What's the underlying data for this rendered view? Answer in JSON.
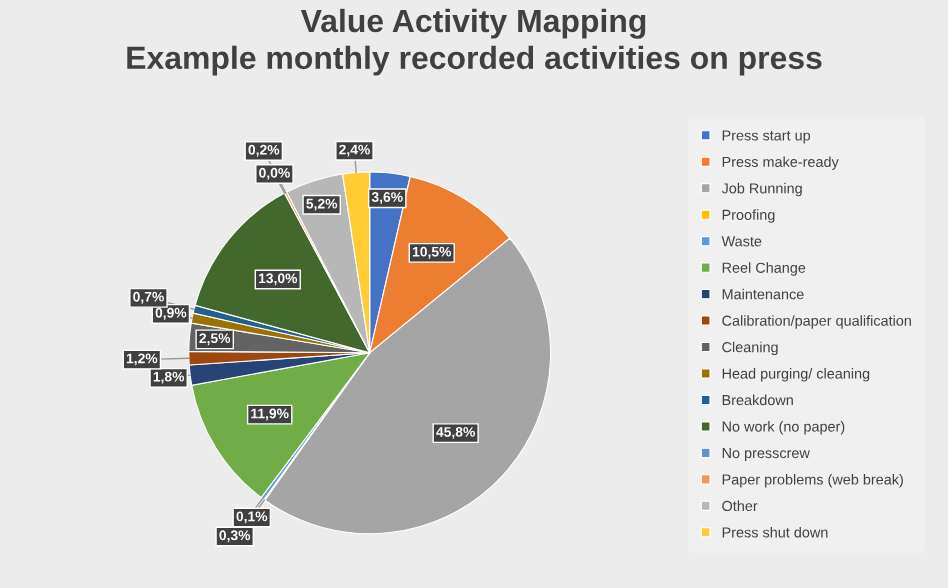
{
  "chart_data": {
    "type": "pie",
    "title": "Value Activity Mapping\nExample monthly recorded activities on press",
    "categories": [
      "Press start up",
      "Press make-ready",
      "Job Running",
      "Proofing",
      "Waste",
      "Reel Change",
      "Maintenance",
      "Calibration/paper qualification",
      "Cleaning",
      "Head purging/ cleaning",
      "Breakdown",
      "No work (no paper)",
      "No presscrew",
      "Paper problems (web break)",
      "Other",
      "Press shut down"
    ],
    "values": [
      3.6,
      10.5,
      45.8,
      0.1,
      0.3,
      11.9,
      1.8,
      1.2,
      2.5,
      0.9,
      0.7,
      13.0,
      0.0,
      0.2,
      5.2,
      2.4
    ],
    "value_labels": [
      "3,6%",
      "10,5%",
      "45,8%",
      "0,1%",
      "0,3%",
      "11,9%",
      "1,8%",
      "1,2%",
      "2,5%",
      "0,9%",
      "0,7%",
      "13,0%",
      "0,0%",
      "0,2%",
      "5,2%",
      "2,4%"
    ],
    "colors": [
      "#4472c4",
      "#ed7d31",
      "#a5a5a5",
      "#ffc000",
      "#5b9bd5",
      "#70ad47",
      "#264478",
      "#9e480e",
      "#636363",
      "#997300",
      "#255e91",
      "#43682b",
      "#698ed0",
      "#f1975a",
      "#b7b7b7",
      "#ffcd33"
    ],
    "legend": "right"
  }
}
